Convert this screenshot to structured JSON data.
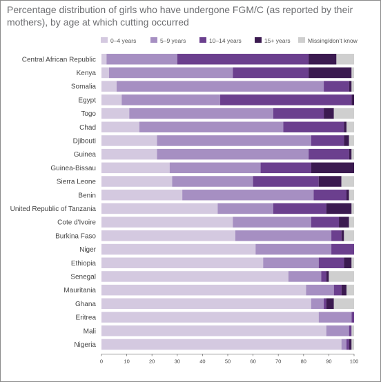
{
  "chart_data": {
    "type": "bar",
    "orientation": "horizontal",
    "stacked": true,
    "title": "Percentage distribution of girls who have undergone FGM/C (as reported by their mothers), by age at which cutting occurred",
    "xlim": [
      0,
      100
    ],
    "xticks": [
      "0",
      "10",
      "20",
      "30",
      "40",
      "50",
      "60",
      "70",
      "80",
      "90",
      "100"
    ],
    "grid": false,
    "legend_position": "top",
    "categories": [
      "Central African Republic",
      "Kenya",
      "Somalia",
      "Egypt",
      "Togo",
      "Chad",
      "Djibouti",
      "Guinea",
      "Guinea-Bissau",
      "Sierra Leone",
      "Benin",
      "United Republic of Tanzania",
      "Cote d'Ivoire",
      "Burkina Faso",
      "Niger",
      "Ethiopia",
      "Senegal",
      "Mauritania",
      "Ghana",
      "Eritrea",
      "Mali",
      "Nigeria"
    ],
    "series": [
      {
        "name": "0–4 years",
        "color": "#d4c9e0",
        "values": [
          2,
          3,
          6,
          8,
          11,
          15,
          22,
          22,
          27,
          28,
          32,
          46,
          52,
          53,
          61,
          64,
          74,
          81,
          83,
          86,
          89,
          95
        ]
      },
      {
        "name": "5–9 years",
        "color": "#a68fc2",
        "values": [
          28,
          49,
          82,
          39,
          57,
          57,
          61,
          60,
          36,
          32,
          52,
          22,
          31,
          38,
          30,
          22,
          13,
          11,
          5,
          13,
          9,
          2
        ]
      },
      {
        "name": "10–14 years",
        "color": "#6b3f8e",
        "values": [
          52,
          30,
          10,
          52,
          20,
          24,
          13,
          16,
          20,
          26,
          13,
          21,
          11,
          4,
          9,
          10,
          2,
          3,
          1,
          1,
          1,
          1
        ]
      },
      {
        "name": "15+ years",
        "color": "#3b1a50",
        "values": [
          11,
          17,
          1,
          1,
          4,
          1,
          2,
          1,
          17,
          9,
          1,
          10,
          4,
          1,
          0,
          3,
          1,
          2,
          3,
          0,
          0,
          1
        ]
      },
      {
        "name": "Missing/don’t know",
        "color": "#cfcfcf",
        "values": [
          7,
          1,
          1,
          0,
          8,
          3,
          2,
          1,
          0,
          5,
          2,
          1,
          2,
          4,
          0,
          1,
          10,
          3,
          8,
          0,
          1,
          1
        ]
      }
    ]
  }
}
